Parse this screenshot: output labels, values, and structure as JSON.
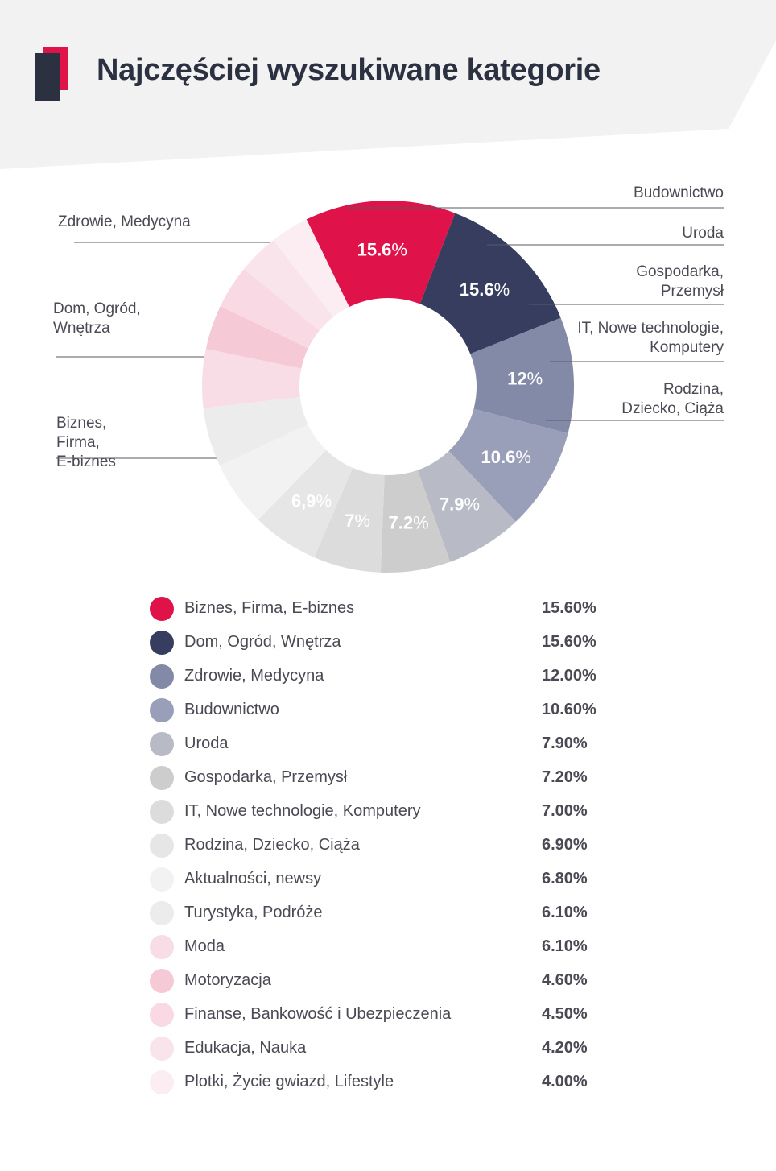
{
  "header": {
    "title": "Najczęściej wyszukiwane kategorie"
  },
  "chart_data": {
    "type": "pie",
    "title": "Najczęściej wyszukiwane kategorie",
    "donut": true,
    "slices": [
      {
        "label": "Biznes, Firma, E-biznes",
        "value": 15.6,
        "legend_value": "15.60%",
        "pie_value": "15.6",
        "color": "#e0124a",
        "text_color": "#ffffff",
        "callout": [
          "Biznes,",
          "Firma,",
          "E-biznes"
        ]
      },
      {
        "label": "Dom, Ogród, Wnętrza",
        "value": 15.6,
        "legend_value": "15.60%",
        "pie_value": "15.6",
        "color": "#363d5e",
        "text_color": "#ffffff",
        "callout": [
          "Dom, Ogród,",
          "Wnętrza"
        ]
      },
      {
        "label": "Zdrowie, Medycyna",
        "value": 12.0,
        "legend_value": "12.00%",
        "pie_value": "12",
        "color": "#828aa8",
        "text_color": "#ffffff",
        "callout": [
          "Zdrowie, Medycyna"
        ]
      },
      {
        "label": "Budownictwo",
        "value": 10.6,
        "legend_value": "10.60%",
        "pie_value": "10.6",
        "color": "#9a9fb9",
        "text_color": "#ffffff",
        "callout": [
          "Budownictwo"
        ]
      },
      {
        "label": "Uroda",
        "value": 7.9,
        "legend_value": "7.90%",
        "pie_value": "7.9",
        "color": "#b8bbc6",
        "text_color": "#ffffff",
        "callout": [
          "Uroda"
        ]
      },
      {
        "label": "Gospodarka, Przemysł",
        "value": 7.2,
        "legend_value": "7.20%",
        "pie_value": "7.2",
        "color": "#cdcdcd",
        "text_color": "#ffffff",
        "callout": [
          "Gospodarka,",
          "Przemysł"
        ]
      },
      {
        "label": "IT, Nowe technologie, Komputery",
        "value": 7.0,
        "legend_value": "7.00%",
        "pie_value": "7",
        "color": "#dcdcdc",
        "text_color": "#ffffff",
        "callout": [
          "IT, Nowe technologie,",
          "Komputery"
        ]
      },
      {
        "label": "Rodzina, Dziecko, Ciąża",
        "value": 6.9,
        "legend_value": "6.90%",
        "pie_value": "6,9",
        "color": "#e6e6e6",
        "text_color": "#ffffff",
        "callout": [
          "Rodzina,",
          "Dziecko, Ciąża"
        ]
      },
      {
        "label": "Aktualności, newsy",
        "value": 6.8,
        "legend_value": "6.80%",
        "pie_value": "",
        "color": "#f2f2f2",
        "text_color": "#ffffff",
        "callout": []
      },
      {
        "label": "Turystyka, Podróże",
        "value": 6.1,
        "legend_value": "6.10%",
        "pie_value": "",
        "color": "#ececec",
        "text_color": "#ffffff",
        "callout": []
      },
      {
        "label": "Moda",
        "value": 6.1,
        "legend_value": "6.10%",
        "pie_value": "",
        "color": "#f9dde6",
        "text_color": "#ffffff",
        "callout": []
      },
      {
        "label": "Motoryzacja",
        "value": 4.6,
        "legend_value": "4.60%",
        "pie_value": "",
        "color": "#f6c9d7",
        "text_color": "#ffffff",
        "callout": []
      },
      {
        "label": "Finanse, Bankowość i Ubezpieczenia",
        "value": 4.5,
        "legend_value": "4.50%",
        "pie_value": "",
        "color": "#f9d9e3",
        "text_color": "#ffffff",
        "callout": []
      },
      {
        "label": "Edukacja, Nauka",
        "value": 4.2,
        "legend_value": "4.20%",
        "pie_value": "",
        "color": "#fae4eb",
        "text_color": "#ffffff",
        "callout": []
      },
      {
        "label": "Plotki, Życie gwiazd, Lifestyle",
        "value": 4.0,
        "legend_value": "4.00%",
        "pie_value": "",
        "color": "#fbedf1",
        "text_color": "#ffffff",
        "callout": []
      }
    ]
  }
}
